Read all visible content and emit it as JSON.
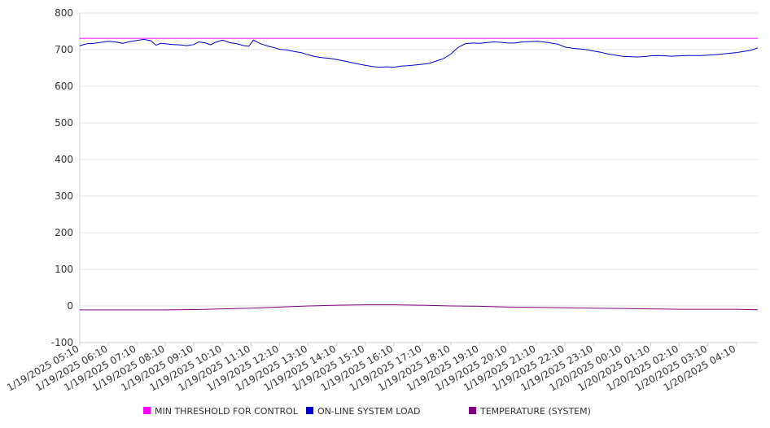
{
  "chart_data": {
    "type": "line",
    "title": "",
    "xlabel": "",
    "ylabel": "",
    "ylim": [
      -100,
      800
    ],
    "yticks": [
      800,
      700,
      600,
      500,
      400,
      300,
      200,
      100,
      0,
      -100
    ],
    "grid": true,
    "legend_placement": "bottom",
    "x_start": "1/19/2025 05:10",
    "x_end": "1/20/2025 04:55",
    "x_tick_labels": [
      "1/19/2025 05:10",
      "1/19/2025 06:10",
      "1/19/2025 07:10",
      "1/19/2025 08:10",
      "1/19/2025 09:10",
      "1/19/2025 10:10",
      "1/19/2025 11:10",
      "1/19/2025 12:10",
      "1/19/2025 13:10",
      "1/19/2025 14:10",
      "1/19/2025 15:10",
      "1/19/2025 16:10",
      "1/19/2025 17:10",
      "1/19/2025 18:10",
      "1/19/2025 19:10",
      "1/19/2025 20:10",
      "1/19/2025 21:10",
      "1/19/2025 22:10",
      "1/19/2025 23:10",
      "1/20/2025 00:10",
      "1/20/2025 01:10",
      "1/20/2025 02:10",
      "1/20/2025 03:10",
      "1/20/2025 04:10"
    ],
    "series": [
      {
        "name": "MIN THRESHOLD FOR CONTROL",
        "color": "#ff00ff",
        "points": [
          [
            "1/19/2025 05:10",
            731
          ],
          [
            "1/20/2025 04:55",
            731
          ]
        ]
      },
      {
        "name": "ON-LINE SYSTEM LOAD",
        "color": "#0000cc",
        "points": [
          [
            "1/19/2025 05:10",
            711
          ],
          [
            "1/19/2025 05:25",
            716
          ],
          [
            "1/19/2025 05:40",
            717
          ],
          [
            "1/19/2025 05:55",
            720
          ],
          [
            "1/19/2025 06:10",
            723
          ],
          [
            "1/19/2025 06:25",
            721
          ],
          [
            "1/19/2025 06:40",
            717
          ],
          [
            "1/19/2025 06:55",
            722
          ],
          [
            "1/19/2025 07:10",
            725
          ],
          [
            "1/19/2025 07:25",
            728
          ],
          [
            "1/19/2025 07:40",
            724
          ],
          [
            "1/19/2025 07:50",
            712
          ],
          [
            "1/19/2025 08:00",
            717
          ],
          [
            "1/19/2025 08:10",
            716
          ],
          [
            "1/19/2025 08:25",
            714
          ],
          [
            "1/19/2025 08:40",
            713
          ],
          [
            "1/19/2025 08:55",
            711
          ],
          [
            "1/19/2025 09:10",
            714
          ],
          [
            "1/19/2025 09:20",
            721
          ],
          [
            "1/19/2025 09:35",
            718
          ],
          [
            "1/19/2025 09:45",
            713
          ],
          [
            "1/19/2025 09:55",
            720
          ],
          [
            "1/19/2025 10:10",
            726
          ],
          [
            "1/19/2025 10:25",
            719
          ],
          [
            "1/19/2025 10:40",
            716
          ],
          [
            "1/19/2025 10:55",
            711
          ],
          [
            "1/19/2025 11:05",
            709
          ],
          [
            "1/19/2025 11:15",
            726
          ],
          [
            "1/19/2025 11:30",
            716
          ],
          [
            "1/19/2025 11:45",
            710
          ],
          [
            "1/19/2025 12:00",
            705
          ],
          [
            "1/19/2025 12:10",
            701
          ],
          [
            "1/19/2025 12:25",
            699
          ],
          [
            "1/19/2025 12:40",
            695
          ],
          [
            "1/19/2025 12:55",
            692
          ],
          [
            "1/19/2025 13:10",
            686
          ],
          [
            "1/19/2025 13:25",
            681
          ],
          [
            "1/19/2025 13:40",
            678
          ],
          [
            "1/19/2025 13:55",
            676
          ],
          [
            "1/19/2025 14:10",
            673
          ],
          [
            "1/19/2025 14:25",
            669
          ],
          [
            "1/19/2025 14:40",
            665
          ],
          [
            "1/19/2025 14:55",
            661
          ],
          [
            "1/19/2025 15:10",
            657
          ],
          [
            "1/19/2025 15:25",
            654
          ],
          [
            "1/19/2025 15:40",
            652
          ],
          [
            "1/19/2025 15:55",
            653
          ],
          [
            "1/19/2025 16:10",
            652
          ],
          [
            "1/19/2025 16:25",
            655
          ],
          [
            "1/19/2025 16:40",
            656
          ],
          [
            "1/19/2025 16:55",
            658
          ],
          [
            "1/19/2025 17:10",
            660
          ],
          [
            "1/19/2025 17:25",
            663
          ],
          [
            "1/19/2025 17:40",
            669
          ],
          [
            "1/19/2025 17:55",
            676
          ],
          [
            "1/19/2025 18:10",
            688
          ],
          [
            "1/19/2025 18:25",
            706
          ],
          [
            "1/19/2025 18:40",
            716
          ],
          [
            "1/19/2025 18:55",
            718
          ],
          [
            "1/19/2025 19:10",
            717
          ],
          [
            "1/19/2025 19:25",
            719
          ],
          [
            "1/19/2025 19:40",
            721
          ],
          [
            "1/19/2025 19:55",
            720
          ],
          [
            "1/19/2025 20:10",
            718
          ],
          [
            "1/19/2025 20:25",
            718
          ],
          [
            "1/19/2025 20:40",
            721
          ],
          [
            "1/19/2025 20:55",
            722
          ],
          [
            "1/19/2025 21:10",
            723
          ],
          [
            "1/19/2025 21:25",
            721
          ],
          [
            "1/19/2025 21:40",
            718
          ],
          [
            "1/19/2025 21:55",
            715
          ],
          [
            "1/19/2025 22:10",
            707
          ],
          [
            "1/19/2025 22:25",
            704
          ],
          [
            "1/19/2025 22:40",
            702
          ],
          [
            "1/19/2025 22:55",
            700
          ],
          [
            "1/19/2025 23:10",
            696
          ],
          [
            "1/19/2025 23:25",
            693
          ],
          [
            "1/19/2025 23:40",
            688
          ],
          [
            "1/19/2025 23:55",
            685
          ],
          [
            "1/20/2025 00:10",
            682
          ],
          [
            "1/20/2025 00:25",
            681
          ],
          [
            "1/20/2025 00:40",
            680
          ],
          [
            "1/20/2025 00:55",
            681
          ],
          [
            "1/20/2025 01:10",
            683
          ],
          [
            "1/20/2025 01:25",
            684
          ],
          [
            "1/20/2025 01:40",
            683
          ],
          [
            "1/20/2025 01:55",
            682
          ],
          [
            "1/20/2025 02:10",
            683
          ],
          [
            "1/20/2025 02:25",
            684
          ],
          [
            "1/20/2025 02:40",
            684
          ],
          [
            "1/20/2025 02:55",
            684
          ],
          [
            "1/20/2025 03:10",
            685
          ],
          [
            "1/20/2025 03:25",
            686
          ],
          [
            "1/20/2025 03:40",
            688
          ],
          [
            "1/20/2025 03:55",
            690
          ],
          [
            "1/20/2025 04:10",
            692
          ],
          [
            "1/20/2025 04:25",
            695
          ],
          [
            "1/20/2025 04:40",
            698
          ],
          [
            "1/20/2025 04:55",
            705
          ]
        ]
      },
      {
        "name": "TEMPERATURE (SYSTEM)",
        "color": "#800080",
        "points": [
          [
            "1/19/2025 05:10",
            -11
          ],
          [
            "1/19/2025 08:10",
            -11
          ],
          [
            "1/19/2025 09:10",
            -10
          ],
          [
            "1/19/2025 10:10",
            -8
          ],
          [
            "1/19/2025 11:10",
            -6
          ],
          [
            "1/19/2025 12:10",
            -3
          ],
          [
            "1/19/2025 13:10",
            0
          ],
          [
            "1/19/2025 14:10",
            2
          ],
          [
            "1/19/2025 15:10",
            3
          ],
          [
            "1/19/2025 16:10",
            3
          ],
          [
            "1/19/2025 17:10",
            2
          ],
          [
            "1/19/2025 18:10",
            0
          ],
          [
            "1/19/2025 19:10",
            -1
          ],
          [
            "1/19/2025 20:10",
            -3
          ],
          [
            "1/19/2025 21:10",
            -4
          ],
          [
            "1/19/2025 22:10",
            -5
          ],
          [
            "1/19/2025 23:10",
            -6
          ],
          [
            "1/20/2025 00:10",
            -7
          ],
          [
            "1/20/2025 01:10",
            -8
          ],
          [
            "1/20/2025 02:10",
            -9
          ],
          [
            "1/20/2025 03:10",
            -9
          ],
          [
            "1/20/2025 04:10",
            -9
          ],
          [
            "1/20/2025 04:40",
            -10
          ],
          [
            "1/20/2025 04:55",
            -11
          ]
        ]
      }
    ]
  }
}
